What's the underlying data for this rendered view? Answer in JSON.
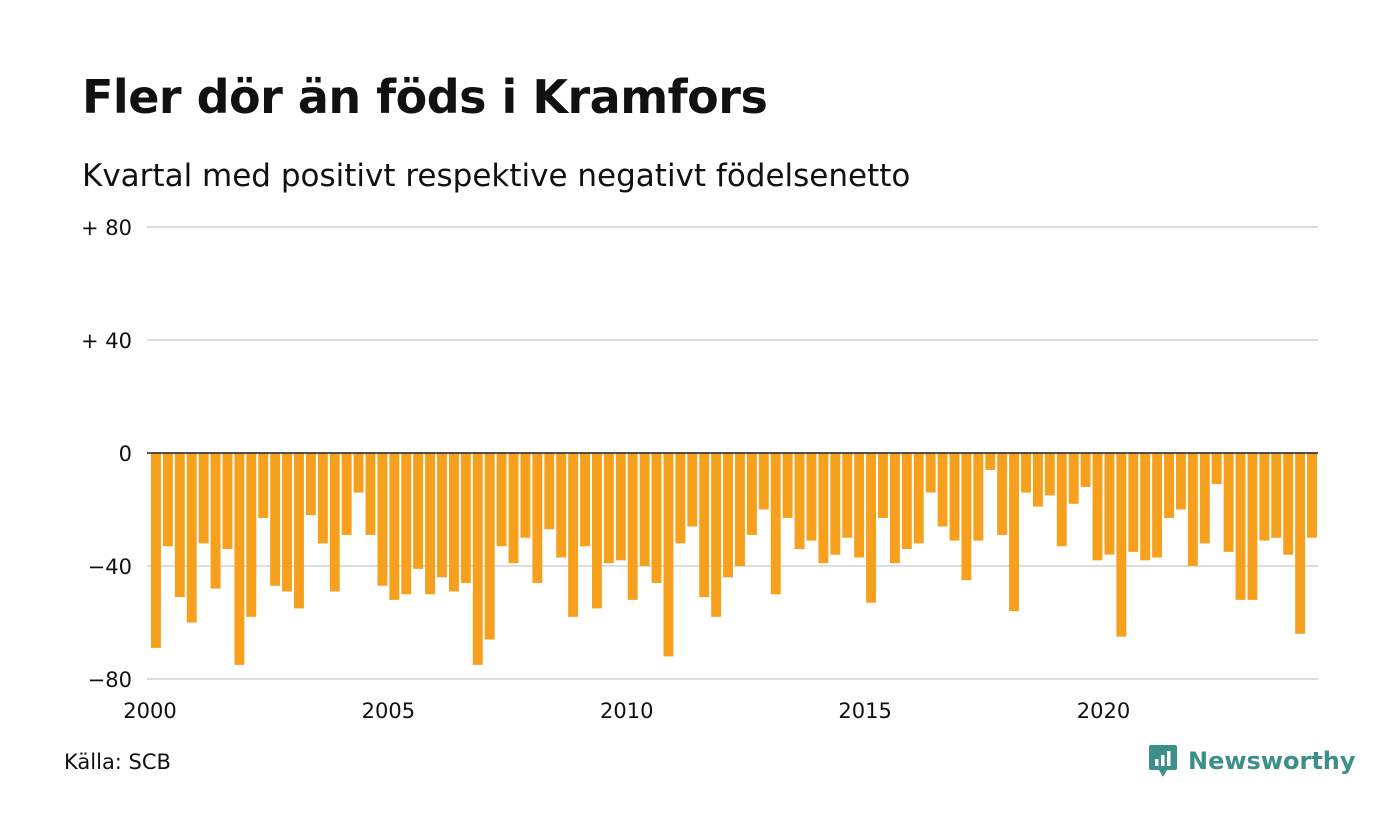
{
  "title": "Fler dör än föds i Kramfors",
  "subtitle": "Kvartal med positivt respektive negativt födelsenetto",
  "source": "Källa: SCB",
  "brand": {
    "name": "Newsworthy",
    "icon": "newsworthy-logo-icon",
    "color": "#3d8f87"
  },
  "colors": {
    "bar": "#f7a01e",
    "grid": "#dddddd",
    "zero_line": "#222222"
  },
  "chart_data": {
    "type": "bar",
    "title": "Fler dör än föds i Kramfors",
    "subtitle": "Kvartal med positivt respektive negativt födelsenetto",
    "xlabel": "",
    "ylabel": "",
    "x_start": 2000,
    "period": "quarter",
    "ylim": [
      -80,
      80
    ],
    "yticks": [
      -80,
      -40,
      0,
      40,
      80
    ],
    "ytick_labels": [
      "−80",
      "−40",
      "0",
      "+ 40",
      "+ 80"
    ],
    "xticks": [
      2000,
      2005,
      2010,
      2015,
      2020
    ],
    "xtick_labels": [
      "2000",
      "2005",
      "2010",
      "2015",
      "2020"
    ],
    "grid": true,
    "values": [
      -69,
      -33,
      -51,
      -60,
      -32,
      -48,
      -34,
      -75,
      -58,
      -23,
      -47,
      -49,
      -55,
      -22,
      -32,
      -49,
      -29,
      -14,
      -29,
      -47,
      -52,
      -50,
      -41,
      -50,
      -44,
      -49,
      -46,
      -75,
      -66,
      -33,
      -39,
      -30,
      -46,
      -27,
      -37,
      -58,
      -33,
      -55,
      -39,
      -38,
      -52,
      -40,
      -46,
      -72,
      -32,
      -26,
      -51,
      -58,
      -44,
      -40,
      -29,
      -20,
      -50,
      -23,
      -34,
      -31,
      -39,
      -36,
      -30,
      -37,
      -53,
      -23,
      -39,
      -34,
      -32,
      -14,
      -26,
      -31,
      -45,
      -31,
      -6,
      -29,
      -56,
      -14,
      -19,
      -15,
      -33,
      -18,
      -12,
      -38,
      -36,
      -65,
      -35,
      -38,
      -37,
      -23,
      -20,
      -40,
      -32,
      -11,
      -35,
      -52,
      -52,
      -31,
      -30,
      -36,
      -64,
      -30
    ]
  }
}
